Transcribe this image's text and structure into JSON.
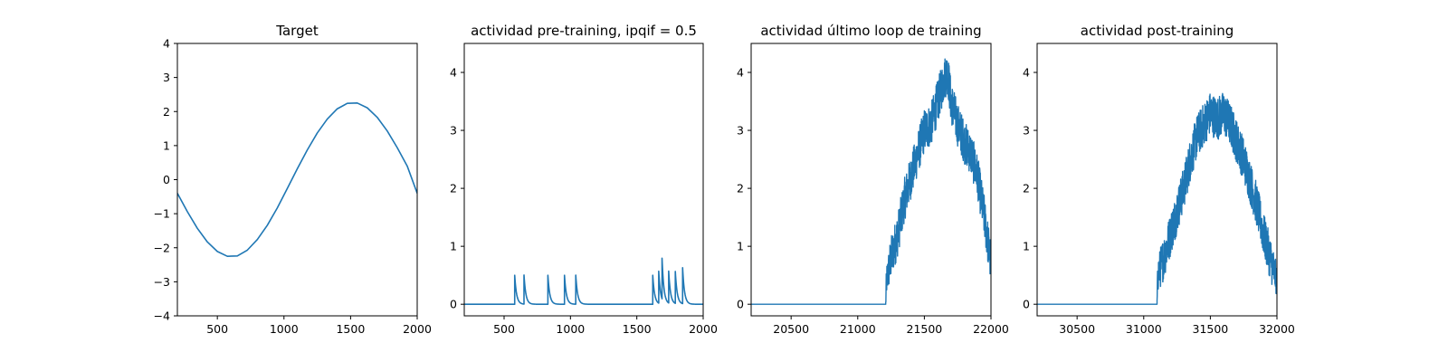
{
  "chart_data": [
    {
      "type": "line",
      "title": "Target",
      "xlabel": "",
      "ylabel": "",
      "xlim": [
        200,
        2000
      ],
      "ylim": [
        -4,
        4
      ],
      "xticks": [
        500,
        1000,
        1500,
        2000
      ],
      "yticks": [
        -4,
        -3,
        -2,
        -1,
        0,
        1,
        2,
        3,
        4
      ],
      "color": "#1f77b4",
      "series": [
        {
          "x": [
            200,
            275,
            350,
            425,
            500,
            575,
            650,
            725,
            800,
            875,
            950,
            1025,
            1100,
            1175,
            1250,
            1325,
            1400,
            1475,
            1550,
            1625,
            1700,
            1775,
            1850,
            1925,
            2000
          ],
          "values": [
            -0.4,
            -0.94,
            -1.43,
            -1.83,
            -2.11,
            -2.25,
            -2.24,
            -2.07,
            -1.76,
            -1.34,
            -0.83,
            -0.26,
            0.32,
            0.87,
            1.37,
            1.78,
            2.08,
            2.24,
            2.25,
            2.11,
            1.83,
            1.43,
            0.94,
            0.4,
            -0.4
          ]
        }
      ]
    },
    {
      "type": "line",
      "title": "actividad pre-training, ipqif = 0.5",
      "xlabel": "",
      "ylabel": "",
      "xlim": [
        200,
        2000
      ],
      "ylim": [
        -0.2,
        4.5
      ],
      "xticks": [
        500,
        1000,
        1500,
        2000
      ],
      "yticks": [
        0,
        1,
        2,
        3,
        4
      ],
      "color": "#1f77b4",
      "spikes": [
        {
          "t": 580,
          "h": 0.5
        },
        {
          "t": 650,
          "h": 0.5
        },
        {
          "t": 830,
          "h": 0.5
        },
        {
          "t": 955,
          "h": 0.5
        },
        {
          "t": 1040,
          "h": 0.5
        },
        {
          "t": 1620,
          "h": 0.5
        },
        {
          "t": 1665,
          "h": 0.55
        },
        {
          "t": 1690,
          "h": 0.7
        },
        {
          "t": 1740,
          "h": 0.55
        },
        {
          "t": 1790,
          "h": 0.55
        },
        {
          "t": 1845,
          "h": 0.62
        }
      ]
    },
    {
      "type": "line",
      "title": "actividad último loop de training",
      "xlabel": "",
      "ylabel": "",
      "xlim": [
        20200,
        22000
      ],
      "ylim": [
        -0.2,
        4.5
      ],
      "xticks": [
        20500,
        21000,
        21500,
        22000
      ],
      "yticks": [
        0,
        1,
        2,
        3,
        4
      ],
      "color": "#1f77b4",
      "series": [
        {
          "x": [
            20200,
            21210,
            21215,
            21250,
            21300,
            21350,
            21400,
            21450,
            21500,
            21550,
            21600,
            21650,
            21675,
            21700,
            21750,
            21800,
            21850,
            21900,
            21950,
            22000
          ],
          "values": [
            0,
            0,
            0.4,
            0.8,
            1.2,
            1.8,
            2.2,
            2.6,
            3.0,
            3.1,
            3.5,
            3.9,
            4.0,
            3.5,
            3.1,
            2.8,
            2.6,
            2.2,
            1.5,
            0.7
          ]
        }
      ]
    },
    {
      "type": "line",
      "title": "actividad post-training",
      "xlabel": "",
      "ylabel": "",
      "xlim": [
        30200,
        32000
      ],
      "ylim": [
        -0.2,
        4.5
      ],
      "xticks": [
        30500,
        31000,
        31500,
        32000
      ],
      "yticks": [
        0,
        1,
        2,
        3,
        4
      ],
      "color": "#1f77b4",
      "series": [
        {
          "x": [
            30200,
            31100,
            31105,
            31150,
            31200,
            31250,
            31300,
            31350,
            31400,
            31450,
            31500,
            31550,
            31600,
            31650,
            31700,
            31750,
            31800,
            31850,
            31900,
            31950,
            32000
          ],
          "values": [
            0,
            0,
            0.5,
            0.8,
            1.2,
            1.6,
            2.0,
            2.5,
            2.9,
            3.1,
            3.3,
            3.2,
            3.3,
            3.1,
            2.8,
            2.5,
            2.1,
            1.7,
            1.2,
            0.8,
            0.4
          ]
        }
      ]
    }
  ]
}
